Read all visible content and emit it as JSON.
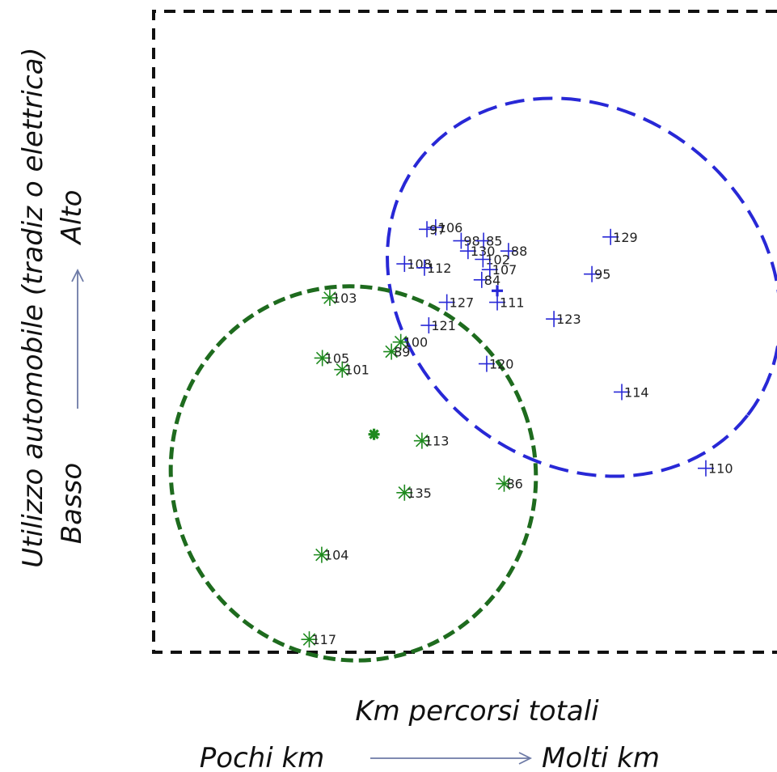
{
  "chart_data": {
    "type": "scatter",
    "title": "",
    "xlabel": "Km percorsi totali",
    "ylabel": "Utilizzo  automobile (tradiz o elettrica)",
    "x_low_label": "Pochi km",
    "x_high_label": "Molti km",
    "y_low_label": "Basso",
    "y_high_label": "Alto",
    "grid": false,
    "series": [
      {
        "color": "#2828d6",
        "marker": "plus",
        "points": [
          {
            "label": "106",
            "x": 0.453,
            "y": 0.337
          },
          {
            "label": "97",
            "x": 0.439,
            "y": 0.34
          },
          {
            "label": "98",
            "x": 0.494,
            "y": 0.358
          },
          {
            "label": "85",
            "x": 0.53,
            "y": 0.358
          },
          {
            "label": "130",
            "x": 0.505,
            "y": 0.374
          },
          {
            "label": "88",
            "x": 0.57,
            "y": 0.374
          },
          {
            "label": "102",
            "x": 0.529,
            "y": 0.387
          },
          {
            "label": "108",
            "x": 0.403,
            "y": 0.394
          },
          {
            "label": "112",
            "x": 0.435,
            "y": 0.4
          },
          {
            "label": "107",
            "x": 0.54,
            "y": 0.403
          },
          {
            "label": "84",
            "x": 0.527,
            "y": 0.419
          },
          {
            "label": "127",
            "x": 0.471,
            "y": 0.454
          },
          {
            "label": "111",
            "x": 0.552,
            "y": 0.454
          },
          {
            "label": "121",
            "x": 0.442,
            "y": 0.49
          },
          {
            "label": "123",
            "x": 0.643,
            "y": 0.48
          },
          {
            "label": "129",
            "x": 0.734,
            "y": 0.352
          },
          {
            "label": "95",
            "x": 0.704,
            "y": 0.41
          },
          {
            "label": "120",
            "x": 0.535,
            "y": 0.55
          },
          {
            "label": "114",
            "x": 0.752,
            "y": 0.594
          },
          {
            "label": "110",
            "x": 0.887,
            "y": 0.713
          }
        ],
        "centroid": {
          "x": 0.552,
          "y": 0.436
        }
      },
      {
        "color": "#1e8a1e",
        "marker": "asterisk",
        "points": [
          {
            "label": "103",
            "x": 0.283,
            "y": 0.447
          },
          {
            "label": "105",
            "x": 0.271,
            "y": 0.541
          },
          {
            "label": "101",
            "x": 0.303,
            "y": 0.559
          },
          {
            "label": "100",
            "x": 0.397,
            "y": 0.516
          },
          {
            "label": "89",
            "x": 0.382,
            "y": 0.531
          },
          {
            "label": "113",
            "x": 0.431,
            "y": 0.67
          },
          {
            "label": "135",
            "x": 0.403,
            "y": 0.751
          },
          {
            "label": "86",
            "x": 0.563,
            "y": 0.737
          },
          {
            "label": "104",
            "x": 0.27,
            "y": 0.848
          },
          {
            "label": "117",
            "x": 0.25,
            "y": 0.98
          }
        ],
        "centroid": {
          "x": 0.354,
          "y": 0.66
        }
      }
    ]
  }
}
